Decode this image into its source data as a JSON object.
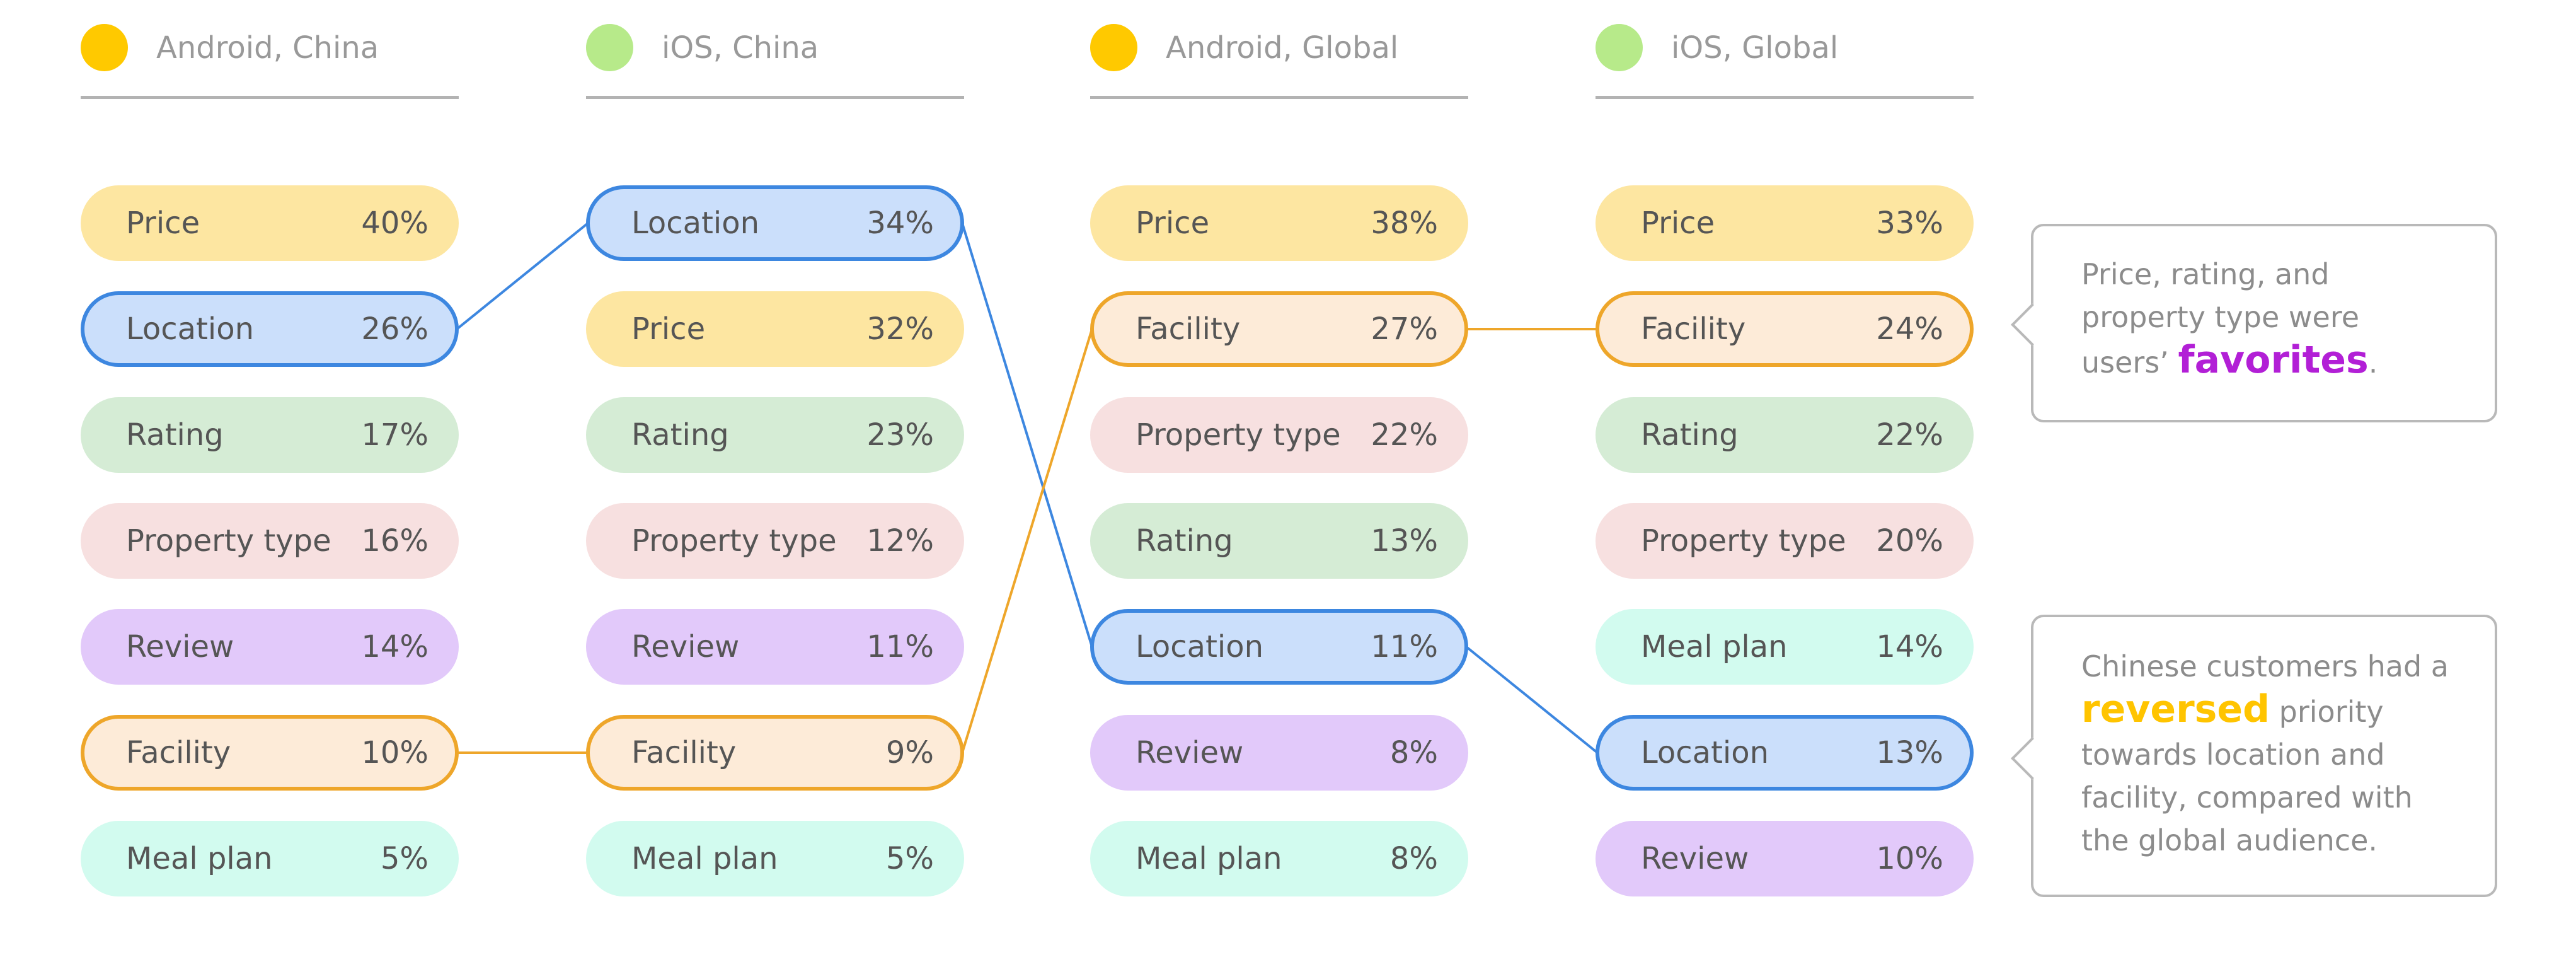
{
  "chart_data": {
    "type": "table",
    "title": "",
    "columns": [
      {
        "name": "Android, China",
        "dot_color": "#ffc900",
        "items": [
          {
            "label": "Price",
            "value": "40%"
          },
          {
            "label": "Location",
            "value": "26%"
          },
          {
            "label": "Rating",
            "value": "17%"
          },
          {
            "label": "Property type",
            "value": "16%"
          },
          {
            "label": "Review",
            "value": "14%"
          },
          {
            "label": "Facility",
            "value": "10%"
          },
          {
            "label": "Meal plan",
            "value": "5%"
          }
        ]
      },
      {
        "name": "iOS, China",
        "dot_color": "#b7ea8a",
        "items": [
          {
            "label": "Location",
            "value": "34%"
          },
          {
            "label": "Price",
            "value": "32%"
          },
          {
            "label": "Rating",
            "value": "23%"
          },
          {
            "label": "Property type",
            "value": "12%"
          },
          {
            "label": "Review",
            "value": "11%"
          },
          {
            "label": "Facility",
            "value": "9%"
          },
          {
            "label": "Meal plan",
            "value": "5%"
          }
        ]
      },
      {
        "name": "Android, Global",
        "dot_color": "#ffc900",
        "items": [
          {
            "label": "Price",
            "value": "38%"
          },
          {
            "label": "Facility",
            "value": "27%"
          },
          {
            "label": "Property type",
            "value": "22%"
          },
          {
            "label": "Rating",
            "value": "13%"
          },
          {
            "label": "Location",
            "value": "11%"
          },
          {
            "label": "Review",
            "value": "8%"
          },
          {
            "label": "Meal plan",
            "value": "8%"
          }
        ]
      },
      {
        "name": "iOS, Global",
        "dot_color": "#b7ea8a",
        "items": [
          {
            "label": "Price",
            "value": "33%"
          },
          {
            "label": "Facility",
            "value": "24%"
          },
          {
            "label": "Rating",
            "value": "22%"
          },
          {
            "label": "Property type",
            "value": "20%"
          },
          {
            "label": "Meal plan",
            "value": "14%"
          },
          {
            "label": "Location",
            "value": "13%"
          },
          {
            "label": "Review",
            "value": "10%"
          }
        ]
      }
    ],
    "highlighted_links": [
      "Location",
      "Facility"
    ],
    "category_colors": {
      "Price": {
        "fill": "#fde6a1",
        "border": "#f2c94c"
      },
      "Location": {
        "fill": "#cbdffb",
        "border": "#3d87e0"
      },
      "Rating": {
        "fill": "#d5ecd5",
        "border": "#8fcf8f"
      },
      "Property type": {
        "fill": "#f7e0e0",
        "border": "#e6a6a6"
      },
      "Review": {
        "fill": "#e2c9fa",
        "border": "#b783ec"
      },
      "Facility": {
        "fill": "#fdebd8",
        "border": "#eea62a"
      },
      "Meal plan": {
        "fill": "#d2fbef",
        "border": "#7fe3c5"
      }
    },
    "link_colors": {
      "Location": "#3d87e0",
      "Facility": "#eea62a"
    }
  },
  "callouts": [
    {
      "before": "Price, rating, and property type were users’ ",
      "accent": "favorites",
      "after": ".",
      "accent_color": "#b21fd6"
    },
    {
      "before": "Chinese customers had a ",
      "accent": "reversed",
      "after": " priority towards location and facility, compared with the global audience.",
      "accent_color": "#ffc400"
    }
  ]
}
